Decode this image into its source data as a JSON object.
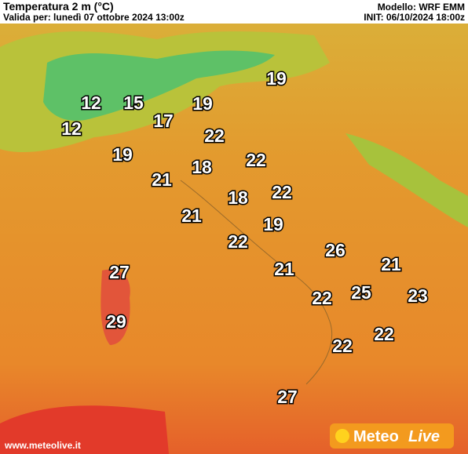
{
  "header": {
    "title": "Temperatura 2 m (°C)",
    "valid": "Valida per: lunedì 07 ottobre 2024 13:00z",
    "model": "Modello: WRF EMM",
    "init": "INIT: 06/10/2024 18:00z"
  },
  "labels": [
    19,
    12,
    15,
    19,
    17,
    12,
    22,
    19,
    22,
    18,
    21,
    22,
    18,
    21,
    19,
    22,
    26,
    21,
    27,
    21,
    22,
    25,
    23,
    29,
    22,
    22,
    27
  ],
  "footer": {
    "url": "www.meteolive.it",
    "logo_left": "Meteo",
    "logo_right": "Live"
  }
}
